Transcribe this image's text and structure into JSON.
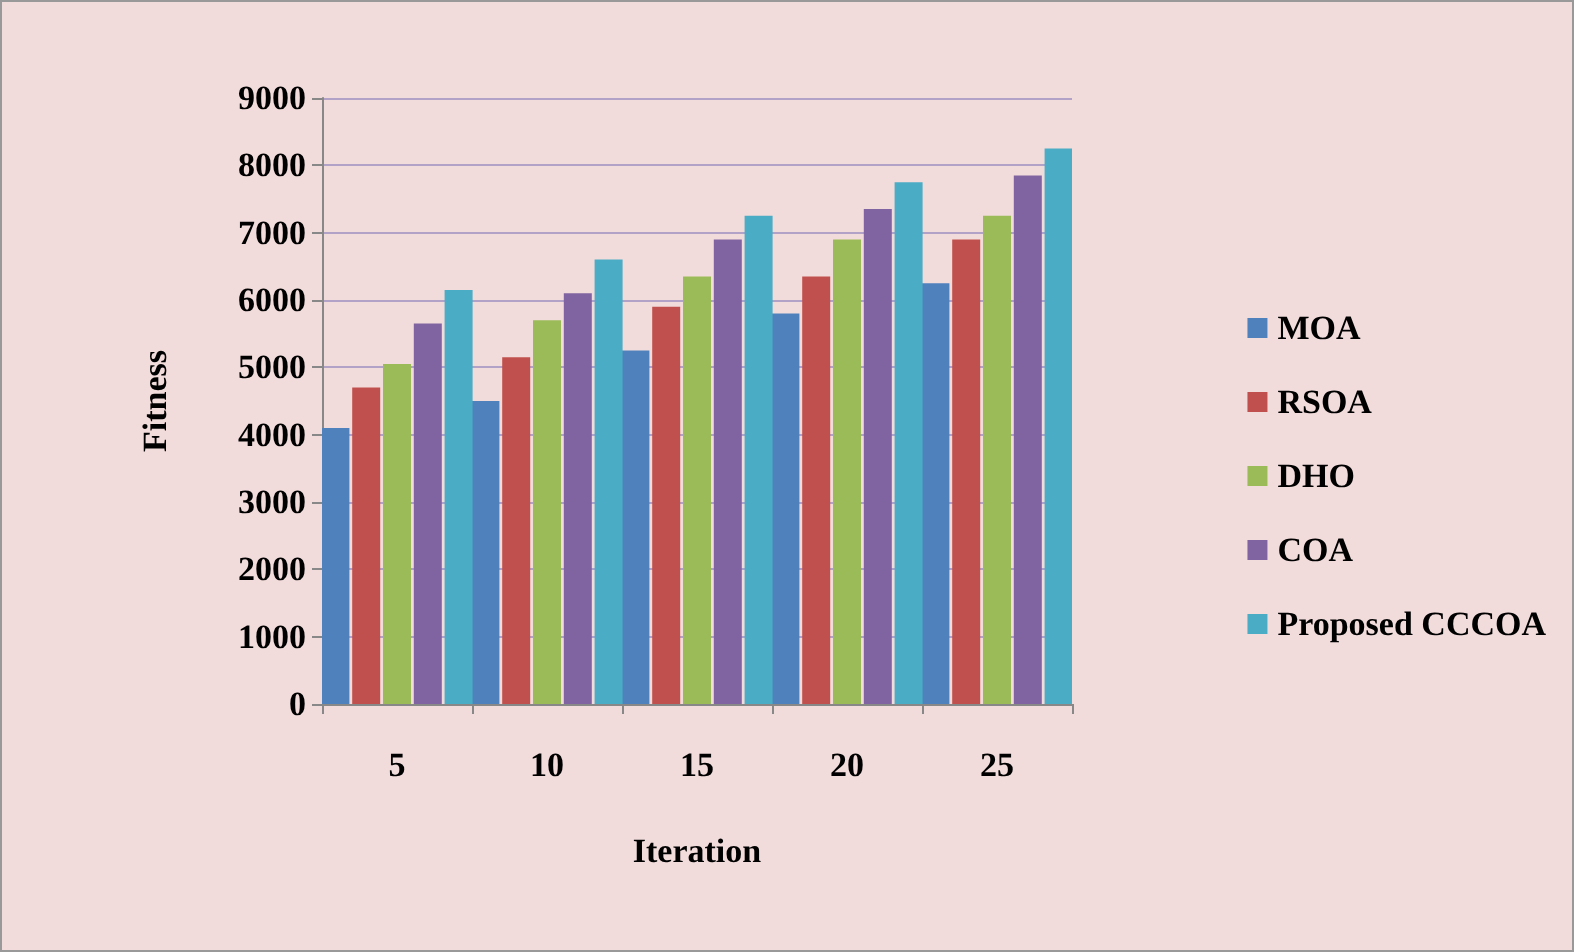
{
  "chart_data": {
    "type": "bar",
    "xlabel": "Iteration",
    "ylabel": "Fitness",
    "categories": [
      "5",
      "10",
      "15",
      "20",
      "25"
    ],
    "series": [
      {
        "name": "MOA",
        "color": "#4f81bd",
        "values": [
          4100,
          4500,
          5250,
          5800,
          6250
        ]
      },
      {
        "name": "RSOA",
        "color": "#c0504d",
        "values": [
          4700,
          5150,
          5900,
          6350,
          6900
        ]
      },
      {
        "name": "DHO",
        "color": "#9bbb59",
        "values": [
          5050,
          5700,
          6350,
          6900,
          7250
        ]
      },
      {
        "name": "COA",
        "color": "#8064a2",
        "values": [
          5650,
          6100,
          6900,
          7350,
          7850
        ]
      },
      {
        "name": "Proposed CCCOA",
        "color": "#4bacc6",
        "values": [
          6150,
          6600,
          7250,
          7750,
          8250
        ]
      }
    ],
    "ylim": [
      0,
      9000
    ],
    "yticks": [
      0,
      1000,
      2000,
      3000,
      4000,
      5000,
      6000,
      7000,
      8000,
      9000
    ],
    "grid": "y",
    "legend": "right"
  }
}
